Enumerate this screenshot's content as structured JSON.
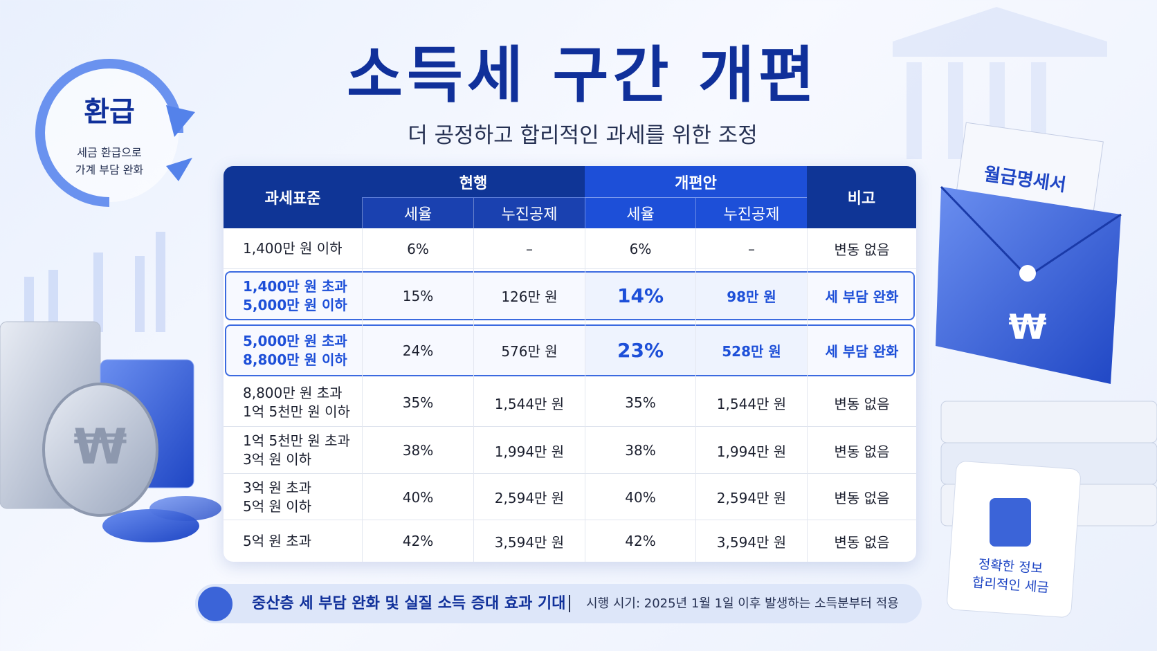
{
  "header": {
    "title": "소득세 구간 개편",
    "subtitle": "더 공정하고 합리적인 과세를 위한 조정"
  },
  "badge": {
    "title": "환급",
    "lines": [
      "세금 환급으로",
      "가계 부담 완화"
    ]
  },
  "table": {
    "bracket_header": "과세표준",
    "current_header": "현행",
    "reform_header": "개편안",
    "note_header": "비고",
    "subheaders": [
      "세율",
      "누진공제",
      "세율",
      "누진공제"
    ],
    "rows": [
      {
        "bracket": [
          "1,400만 원 이하"
        ],
        "current_rate": "6%",
        "current_deduction": "–",
        "new_rate": "6%",
        "new_deduction": "–",
        "note": "변동 없음"
      },
      {
        "bracket": [
          "1,400만 원 초과",
          "5,000만 원 이하"
        ],
        "current_rate": "15%",
        "current_deduction": "126만 원",
        "new_rate": "14%",
        "new_deduction": "98만 원",
        "note": "세 부담 완화"
      },
      {
        "bracket": [
          "5,000만 원 초과",
          "8,800만 원 이하"
        ],
        "current_rate": "24%",
        "current_deduction": "576만 원",
        "new_rate": "23%",
        "new_deduction": "528만 원",
        "note": "세 부담 완화"
      },
      {
        "bracket": [
          "8,800만 원 초과",
          "1억 5천만 원 이하"
        ],
        "current_rate": "35%",
        "current_deduction": "1,544만 원",
        "new_rate": "35%",
        "new_deduction": "1,544만 원",
        "note": "변동 없음"
      },
      {
        "bracket": [
          "1억 5천만 원 초과",
          "3억 원 이하"
        ],
        "current_rate": "38%",
        "current_deduction": "1,994만 원",
        "new_rate": "38%",
        "new_deduction": "1,994만 원",
        "note": "변동 없음"
      },
      {
        "bracket": [
          "3억 원 초과",
          "5억 원 이하"
        ],
        "current_rate": "40%",
        "current_deduction": "2,594만 원",
        "new_rate": "40%",
        "new_deduction": "2,594만 원",
        "note": "변동 없음"
      },
      {
        "bracket": [
          "5억 원 초과"
        ],
        "current_rate": "42%",
        "current_deduction": "3,594만 원",
        "new_rate": "42%",
        "new_deduction": "3,594만 원",
        "note": "변동 없음"
      }
    ]
  },
  "envelope": {
    "label": "월급명세서",
    "symbol": "₩"
  },
  "coins": {
    "symbol": "₩"
  },
  "calendar": {
    "lines": [
      "정확한 정보",
      "합리적인 세금"
    ]
  },
  "footer": {
    "headline": "중산층 세 부담 완화 및 실질 소득 증대 효과 기대",
    "note": "시행 시기: 2025년 1월 1일 이후 발생하는 소득분부터 적용"
  }
}
